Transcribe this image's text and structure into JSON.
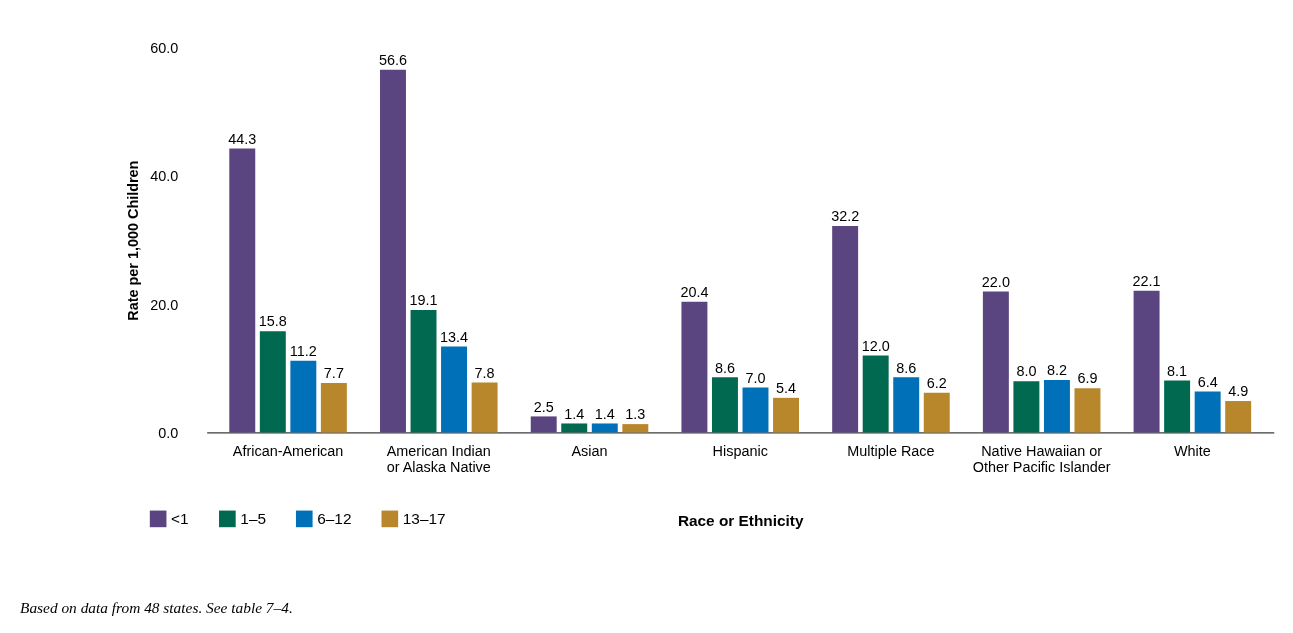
{
  "chart_data": {
    "type": "bar",
    "ylabel": "Rate per 1,000 Children",
    "xlabel": "Race or Ethnicity",
    "categories": [
      "African-American",
      "American Indian\nor Alaska Native",
      "Asian",
      "Hispanic",
      "Multiple Race",
      "Native Hawaiian or\nOther Pacific Islander",
      "White"
    ],
    "series": [
      {
        "name": "<1",
        "color": "#5b4580",
        "values": [
          44.3,
          56.6,
          2.5,
          20.4,
          32.2,
          22.0,
          22.1
        ],
        "value_labels": [
          "44.3",
          "56.6",
          "2.5",
          "20.4",
          "32.2",
          "22.0",
          "22.1"
        ]
      },
      {
        "name": "1–5",
        "color": "#00694f",
        "values": [
          15.8,
          19.1,
          1.4,
          8.6,
          12.0,
          8.0,
          8.1
        ],
        "value_labels": [
          "15.8",
          "19.1",
          "1.4",
          "8.6",
          "12.0",
          "8.0",
          "8.1"
        ]
      },
      {
        "name": "6–12",
        "color": "#0070b8",
        "values": [
          11.2,
          13.4,
          1.4,
          7.0,
          8.6,
          8.2,
          6.4
        ],
        "value_labels": [
          "11.2",
          "13.4",
          "1.4",
          "7.0",
          "8.6",
          "8.2",
          "6.4"
        ]
      },
      {
        "name": "13–17",
        "color": "#b8862b",
        "values": [
          7.7,
          7.8,
          1.3,
          5.4,
          6.2,
          6.9,
          4.9
        ],
        "value_labels": [
          "7.7",
          "7.8",
          "1.3",
          "5.4",
          "6.2",
          "6.9",
          "4.9"
        ]
      }
    ],
    "ylim": [
      0,
      60
    ],
    "yticks": [
      {
        "value": 0,
        "label": "0.0"
      },
      {
        "value": 20,
        "label": "20.0"
      },
      {
        "value": 40,
        "label": "40.0"
      },
      {
        "value": 60,
        "label": "60.0"
      }
    ],
    "grid": false,
    "legend": "bottom left",
    "annotations": [
      "Based on data from 48 states. See table 7–4."
    ]
  }
}
